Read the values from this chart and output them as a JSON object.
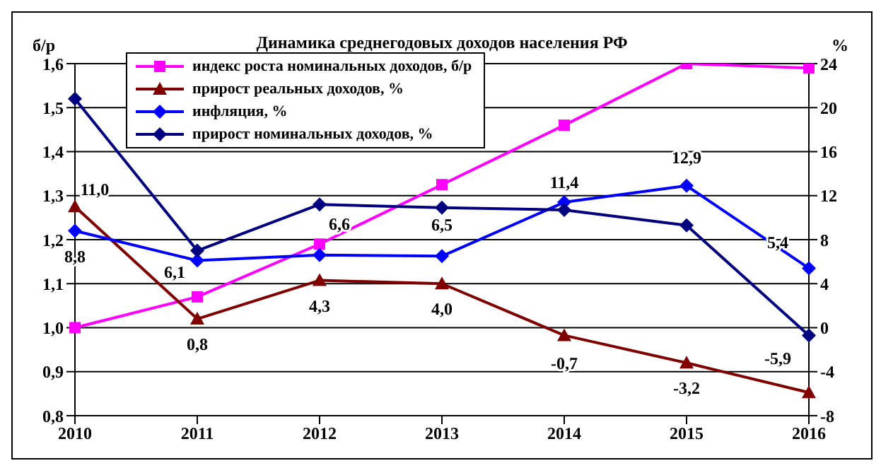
{
  "chart_data": {
    "type": "line",
    "title": "Динамика среднегодовых доходов населения РФ",
    "ylabel": "б/р",
    "y2label": "%",
    "categories": [
      "2010",
      "2011",
      "2012",
      "2013",
      "2014",
      "2015",
      "2016"
    ],
    "series": [
      {
        "name": "индекс роста номинальных доходов, б/р",
        "color": "#ff00ff",
        "marker": "square",
        "values": [
          1.0,
          1.07,
          1.19,
          1.325,
          1.46,
          1.6,
          1.59
        ]
      },
      {
        "name": "прирост реальных доходов, %",
        "color": "#800000",
        "marker": "triangle",
        "axis": "y2",
        "values": [
          11.0,
          0.8,
          4.3,
          4.0,
          -0.7,
          -3.2,
          -5.9
        ],
        "value_labels": [
          "11,0",
          "0,8",
          "4,3",
          "4,0",
          "-0,7",
          "-3,2",
          "-5,9"
        ]
      },
      {
        "name": "инфляция, %",
        "color": "#0000ff",
        "marker": "diamond",
        "axis": "y2",
        "values": [
          8.8,
          6.1,
          6.6,
          6.5,
          11.4,
          12.9,
          5.4
        ],
        "value_labels": [
          "8,8",
          "6,1",
          "6,6",
          "6,5",
          "11,4",
          "12,9",
          "5,4"
        ]
      },
      {
        "name": "прирост номинальных доходов, %",
        "color": "#000080",
        "marker": "diamond",
        "axis": "y2",
        "values": [
          20.8,
          7.0,
          11.2,
          10.9,
          10.7,
          9.3,
          -0.7
        ]
      }
    ],
    "ylim": [
      0.8,
      1.6
    ],
    "yticks": [
      {
        "value": 0.8,
        "label": "0,8"
      },
      {
        "value": 0.9,
        "label": "0,9"
      },
      {
        "value": 1.0,
        "label": "1,0"
      },
      {
        "value": 1.1,
        "label": "1,1"
      },
      {
        "value": 1.2,
        "label": "1,2"
      },
      {
        "value": 1.3,
        "label": "1,3"
      },
      {
        "value": 1.4,
        "label": "1,4"
      },
      {
        "value": 1.5,
        "label": "1,5"
      },
      {
        "value": 1.6,
        "label": "1,6"
      }
    ],
    "y2lim": [
      -8,
      24
    ],
    "y2ticks": [
      -8,
      -4,
      0,
      4,
      8,
      12,
      16,
      20,
      24
    ],
    "grid": "y",
    "legend": "top left",
    "line_style": "solid"
  }
}
